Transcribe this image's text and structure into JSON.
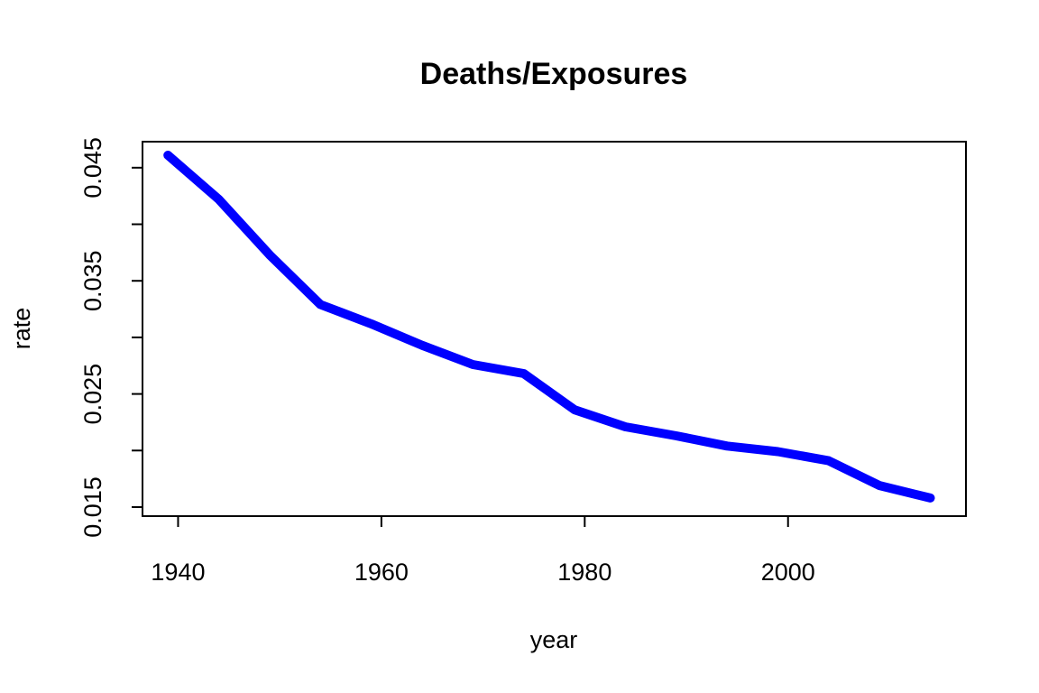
{
  "chart_data": {
    "type": "line",
    "title": "Deaths/Exposures",
    "xlabel": "year",
    "ylabel": "rate",
    "xlim": [
      1936.5,
      2017.5
    ],
    "ylim": [
      0.0142,
      0.0473
    ],
    "x_ticks": [
      1940,
      1960,
      1980,
      2000
    ],
    "y_ticks": [
      0.015,
      0.02,
      0.025,
      0.03,
      0.035,
      0.04,
      0.045
    ],
    "y_tick_labels": [
      "0.015",
      "",
      "0.025",
      "",
      "0.035",
      "",
      "0.045"
    ],
    "grid": false,
    "series": [
      {
        "color": "#0000ff",
        "x": [
          1939,
          1944,
          1949,
          1954,
          1959,
          1964,
          1969,
          1974,
          1979,
          1984,
          1989,
          1994,
          1999,
          2004,
          2009,
          2014
        ],
        "y": [
          0.0461,
          0.0422,
          0.0373,
          0.0329,
          0.0312,
          0.0293,
          0.0276,
          0.0268,
          0.0236,
          0.0221,
          0.0213,
          0.0204,
          0.0199,
          0.0191,
          0.0169,
          0.0158
        ]
      }
    ]
  }
}
